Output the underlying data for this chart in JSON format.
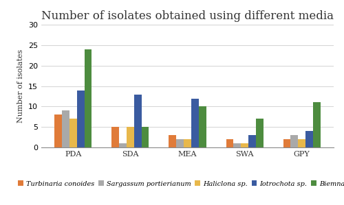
{
  "title": "Number of isolates obtained using different media",
  "ylabel": "Number of isolates",
  "categories": [
    "PDA",
    "SDA",
    "MEA",
    "SWA",
    "GPY"
  ],
  "series": {
    "Turbinaria conoides": [
      8,
      5,
      3,
      2,
      2
    ],
    "Sargassum portierianum": [
      9,
      1,
      2,
      1,
      3
    ],
    "Haliclona sp.": [
      7,
      5,
      2,
      1,
      2
    ],
    "Iotrochota sp.": [
      14,
      13,
      12,
      3,
      4
    ],
    "Biemna sp.": [
      24,
      5,
      10,
      7,
      11
    ]
  },
  "colors": {
    "Turbinaria conoides": "#E07B39",
    "Sargassum portierianum": "#A9A9A9",
    "Haliclona sp.": "#E8B84B",
    "Iotrochota sp.": "#3A5BA0",
    "Biemna sp.": "#4D8C3F"
  },
  "ylim": [
    0,
    30
  ],
  "yticks": [
    0,
    5,
    10,
    15,
    20,
    25,
    30
  ],
  "legend_labels": [
    "Turbinaria conoides",
    "Sargassum portierianum",
    "Haliclona sp.",
    "Iotrochota sp.",
    "Biemna sp."
  ],
  "bar_width": 0.13,
  "title_fontsize": 12,
  "axis_label_fontsize": 8,
  "legend_fontsize": 7,
  "tick_fontsize": 8,
  "background_color": "#ffffff"
}
